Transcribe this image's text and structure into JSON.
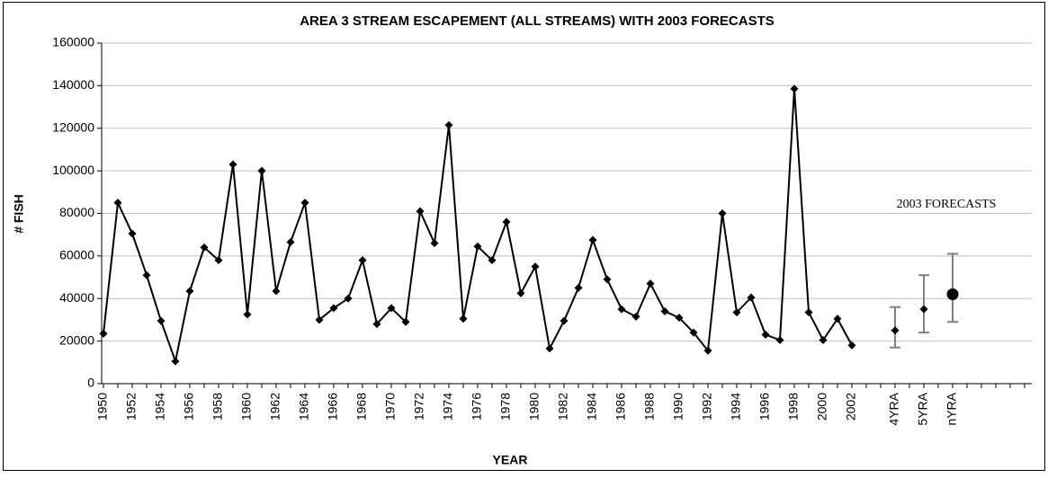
{
  "chart_data": {
    "type": "line",
    "title": "AREA 3 STREAM ESCAPEMENT (ALL STREAMS) WITH 2003 FORECASTS",
    "x_label": "YEAR",
    "y_label": "# FISH",
    "annotation": "2003 FORECASTS",
    "categories": [
      "1950",
      null,
      "1952",
      null,
      "1954",
      null,
      "1956",
      null,
      "1958",
      null,
      "1960",
      null,
      "1962",
      null,
      "1964",
      null,
      "1966",
      null,
      "1968",
      null,
      "1970",
      null,
      "1972",
      null,
      "1974",
      null,
      "1976",
      null,
      "1978",
      null,
      "1980",
      null,
      "1982",
      null,
      "1984",
      null,
      "1986",
      null,
      "1988",
      null,
      "1990",
      null,
      "1992",
      null,
      "1994",
      null,
      "1996",
      null,
      "1998",
      null,
      "2000",
      null,
      "2002",
      null,
      null,
      "4YRA",
      null,
      "5YRA",
      null,
      "nYRA",
      null,
      null,
      null,
      null,
      null
    ],
    "series": [
      {
        "color": "#000000",
        "marker": "diamond",
        "connect": true,
        "values": [
          23500,
          85000,
          70500,
          51000,
          29500,
          10500,
          43500,
          64000,
          58000,
          103000,
          32500,
          100000,
          43500,
          66500,
          85000,
          30000,
          35500,
          40000,
          58000,
          28000,
          35500,
          29000,
          81000,
          66000,
          121500,
          30500,
          64500,
          58000,
          76000,
          42500,
          55000,
          16500,
          29500,
          45000,
          67500,
          49000,
          35000,
          31500,
          47000,
          34000,
          31000,
          24000,
          15500,
          80000,
          33500,
          40500,
          23000,
          20500,
          138500,
          33500,
          20500,
          30500,
          18000,
          null,
          null,
          null,
          null,
          null,
          null,
          null,
          null,
          null,
          null,
          null,
          null
        ]
      },
      {
        "color": "#000000",
        "error_color": "#808080",
        "connect": false,
        "values": [
          null,
          null,
          null,
          null,
          null,
          null,
          null,
          null,
          null,
          null,
          null,
          null,
          null,
          null,
          null,
          null,
          null,
          null,
          null,
          null,
          null,
          null,
          null,
          null,
          null,
          null,
          null,
          null,
          null,
          null,
          null,
          null,
          null,
          null,
          null,
          null,
          null,
          null,
          null,
          null,
          null,
          null,
          null,
          null,
          null,
          null,
          null,
          null,
          null,
          null,
          null,
          null,
          null,
          null,
          null,
          25000,
          null,
          35000,
          null,
          42000,
          null,
          null,
          null,
          null,
          null
        ],
        "lower": [
          null,
          null,
          null,
          null,
          null,
          null,
          null,
          null,
          null,
          null,
          null,
          null,
          null,
          null,
          null,
          null,
          null,
          null,
          null,
          null,
          null,
          null,
          null,
          null,
          null,
          null,
          null,
          null,
          null,
          null,
          null,
          null,
          null,
          null,
          null,
          null,
          null,
          null,
          null,
          null,
          null,
          null,
          null,
          null,
          null,
          null,
          null,
          null,
          null,
          null,
          null,
          null,
          null,
          null,
          null,
          17000,
          null,
          24000,
          null,
          29000,
          null,
          null,
          null,
          null,
          null
        ],
        "upper": [
          null,
          null,
          null,
          null,
          null,
          null,
          null,
          null,
          null,
          null,
          null,
          null,
          null,
          null,
          null,
          null,
          null,
          null,
          null,
          null,
          null,
          null,
          null,
          null,
          null,
          null,
          null,
          null,
          null,
          null,
          null,
          null,
          null,
          null,
          null,
          null,
          null,
          null,
          null,
          null,
          null,
          null,
          null,
          null,
          null,
          null,
          null,
          null,
          null,
          null,
          null,
          null,
          null,
          null,
          null,
          36000,
          null,
          51000,
          null,
          61000,
          null,
          null,
          null,
          null,
          null
        ],
        "markers": [
          null,
          null,
          null,
          null,
          null,
          null,
          null,
          null,
          null,
          null,
          null,
          null,
          null,
          null,
          null,
          null,
          null,
          null,
          null,
          null,
          null,
          null,
          null,
          null,
          null,
          null,
          null,
          null,
          null,
          null,
          null,
          null,
          null,
          null,
          null,
          null,
          null,
          null,
          null,
          null,
          null,
          null,
          null,
          null,
          null,
          null,
          null,
          null,
          null,
          null,
          null,
          null,
          null,
          null,
          null,
          "diamond",
          null,
          "diamond",
          null,
          "circle",
          null,
          null,
          null,
          null,
          null
        ]
      }
    ],
    "ylim": [
      0,
      160000
    ],
    "yticks": [
      0,
      20000,
      40000,
      60000,
      80000,
      100000,
      120000,
      140000,
      160000
    ],
    "grid": true
  }
}
